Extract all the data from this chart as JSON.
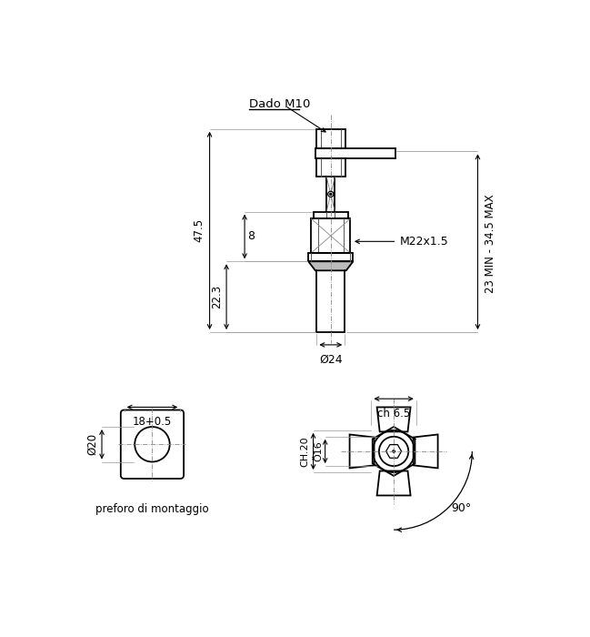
{
  "bg_color": "#ffffff",
  "annotations": {
    "dado_m10": "Dado M10",
    "dim_47_5": "47.5",
    "dim_22_3": "22.3",
    "dim_8": "8",
    "dim_m22x15": "M22x1.5",
    "dim_phi24": "Ø24",
    "dim_23_345": "23 MIN - 34.5 MAX",
    "dim_18_05": "18+0.5",
    "dim_phi20": "Ø20",
    "preforo": "preforo di montaggio",
    "dim_ch65": "ch 6.5",
    "dim_ch20": "CH.20",
    "dim_phi16": "Ö16",
    "dim_90": "90°"
  }
}
